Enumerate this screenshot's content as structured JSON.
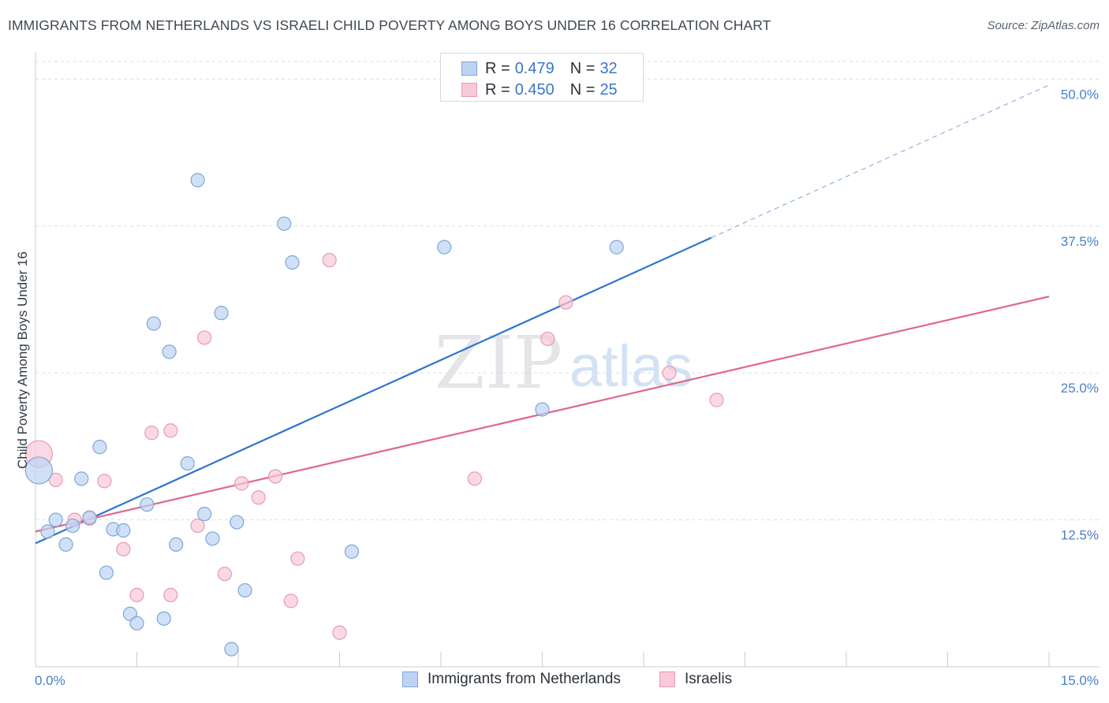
{
  "title": "IMMIGRANTS FROM NETHERLANDS VS ISRAELI CHILD POVERTY AMONG BOYS UNDER 16 CORRELATION CHART",
  "source": "Source: ZipAtlas.com",
  "watermark": {
    "zip": "ZIP",
    "atlas": "atlas"
  },
  "colors": {
    "blue_fill": "#bcd4f4",
    "blue_stroke": "#7ea6d9",
    "blue_line": "#2f74cf",
    "pink_fill": "#f8c9d8",
    "pink_stroke": "#e899b3",
    "pink_line": "#e0668f",
    "grid": "#d9dde3",
    "tick_text": "#4a80c8"
  },
  "legend": {
    "rows": [
      {
        "series": "netherlands",
        "r_label": "R =",
        "r_value": "0.479",
        "n_label": "N =",
        "n_value": "32"
      },
      {
        "series": "israelis",
        "r_label": "R =",
        "r_value": "0.450",
        "n_label": "N =",
        "n_value": "25"
      }
    ]
  },
  "bottom_legend": {
    "netherlands": "Immigrants from Netherlands",
    "israelis": "Israelis"
  },
  "chart_data": {
    "type": "scatter",
    "title": "IMMIGRANTS FROM NETHERLANDS VS ISRAELI CHILD POVERTY AMONG BOYS UNDER 16 CORRELATION CHART",
    "xlabel": "",
    "ylabel": "Child Poverty Among Boys Under 16",
    "xlim": [
      0,
      15
    ],
    "ylim": [
      0,
      51.5
    ],
    "x_tick_labels": {
      "min": "0.0%",
      "max": "15.0%"
    },
    "y_ticks": [
      {
        "value": 12.5,
        "label": "12.5%"
      },
      {
        "value": 25.0,
        "label": "25.0%"
      },
      {
        "value": 37.5,
        "label": "37.5%"
      },
      {
        "value": 50.0,
        "label": "50.0%"
      }
    ],
    "x_minor_ticks": [
      0,
      1.5,
      3.0,
      4.5,
      6.0,
      7.5,
      9.0,
      10.5,
      12.0,
      13.5,
      15.0
    ],
    "series": [
      {
        "name": "Immigrants from Netherlands",
        "key": "netherlands",
        "trend": {
          "x0": 0,
          "y0": 10.5,
          "x1": 10.0,
          "y1": 36.5,
          "dash_x1": 15.0,
          "dash_y1": 49.5
        },
        "points": [
          {
            "x": 0.05,
            "y": 16.7,
            "size": "large"
          },
          {
            "x": 0.18,
            "y": 11.5
          },
          {
            "x": 0.3,
            "y": 12.5
          },
          {
            "x": 0.45,
            "y": 10.4
          },
          {
            "x": 0.55,
            "y": 12.0
          },
          {
            "x": 0.68,
            "y": 16.0
          },
          {
            "x": 0.8,
            "y": 12.7
          },
          {
            "x": 0.95,
            "y": 18.7
          },
          {
            "x": 1.05,
            "y": 8.0
          },
          {
            "x": 1.15,
            "y": 11.7
          },
          {
            "x": 1.3,
            "y": 11.6
          },
          {
            "x": 1.4,
            "y": 4.5
          },
          {
            "x": 1.5,
            "y": 3.7
          },
          {
            "x": 1.65,
            "y": 13.8
          },
          {
            "x": 1.75,
            "y": 29.2
          },
          {
            "x": 1.9,
            "y": 4.1
          },
          {
            "x": 1.98,
            "y": 26.8
          },
          {
            "x": 2.08,
            "y": 10.4
          },
          {
            "x": 2.25,
            "y": 17.3
          },
          {
            "x": 2.4,
            "y": 41.4
          },
          {
            "x": 2.5,
            "y": 13.0
          },
          {
            "x": 2.62,
            "y": 10.9
          },
          {
            "x": 2.75,
            "y": 30.1
          },
          {
            "x": 2.9,
            "y": 1.5
          },
          {
            "x": 2.98,
            "y": 12.3
          },
          {
            "x": 3.1,
            "y": 6.5
          },
          {
            "x": 3.68,
            "y": 37.7
          },
          {
            "x": 3.8,
            "y": 34.4
          },
          {
            "x": 4.68,
            "y": 9.8
          },
          {
            "x": 6.05,
            "y": 35.7
          },
          {
            "x": 7.5,
            "y": 21.9
          },
          {
            "x": 8.6,
            "y": 35.7
          }
        ]
      },
      {
        "name": "Israelis",
        "key": "israelis",
        "trend": {
          "x0": 0,
          "y0": 11.5,
          "x1": 15.0,
          "y1": 31.5
        },
        "points": [
          {
            "x": 0.05,
            "y": 18.1,
            "size": "large"
          },
          {
            "x": 0.3,
            "y": 15.9
          },
          {
            "x": 0.58,
            "y": 12.5
          },
          {
            "x": 0.8,
            "y": 12.6
          },
          {
            "x": 1.02,
            "y": 15.8
          },
          {
            "x": 1.3,
            "y": 10.0
          },
          {
            "x": 1.5,
            "y": 6.1
          },
          {
            "x": 1.72,
            "y": 19.9
          },
          {
            "x": 2.0,
            "y": 6.1
          },
          {
            "x": 2.0,
            "y": 20.1
          },
          {
            "x": 2.4,
            "y": 12.0
          },
          {
            "x": 2.5,
            "y": 28.0
          },
          {
            "x": 2.8,
            "y": 7.9
          },
          {
            "x": 3.05,
            "y": 15.6
          },
          {
            "x": 3.3,
            "y": 14.4
          },
          {
            "x": 3.55,
            "y": 16.2
          },
          {
            "x": 3.78,
            "y": 5.6
          },
          {
            "x": 3.88,
            "y": 9.2
          },
          {
            "x": 4.35,
            "y": 34.6
          },
          {
            "x": 4.5,
            "y": 2.9
          },
          {
            "x": 6.5,
            "y": 16.0
          },
          {
            "x": 7.58,
            "y": 27.9
          },
          {
            "x": 7.85,
            "y": 31.0
          },
          {
            "x": 9.38,
            "y": 25.0
          },
          {
            "x": 10.08,
            "y": 22.7
          }
        ]
      }
    ]
  }
}
